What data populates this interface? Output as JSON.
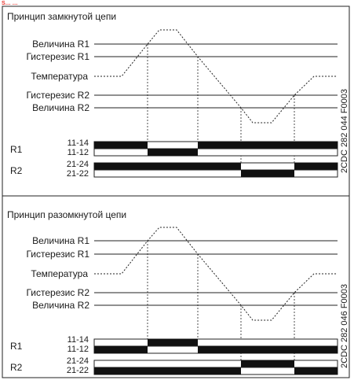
{
  "corner_marker": "S… …",
  "panels": [
    {
      "title": "Принцип замкнутой цепи",
      "levels": {
        "value_r1": "Величина R1",
        "hyst_r1": "Гистерезис R1",
        "temperature": "Температура",
        "hyst_r2": "Гистерезис R2",
        "value_r2": "Величина R2"
      },
      "relays": [
        {
          "name": "R1",
          "contacts": [
            "11-14",
            "11-12"
          ]
        },
        {
          "name": "R2",
          "contacts": [
            "21-24",
            "21-22"
          ]
        }
      ],
      "code": "2CDC 282 044 F0003"
    },
    {
      "title": "Принцип разомкнутой цепи",
      "levels": {
        "value_r1": "Величина R1",
        "hyst_r1": "Гистерезис R1",
        "temperature": "Температура",
        "hyst_r2": "Гистерезис R2",
        "value_r2": "Величина R2"
      },
      "relays": [
        {
          "name": "R1",
          "contacts": [
            "11-14",
            "11-12"
          ]
        },
        {
          "name": "R2",
          "contacts": [
            "21-24",
            "21-22"
          ]
        }
      ],
      "code": "2CDC 282 046 F0003"
    }
  ]
}
